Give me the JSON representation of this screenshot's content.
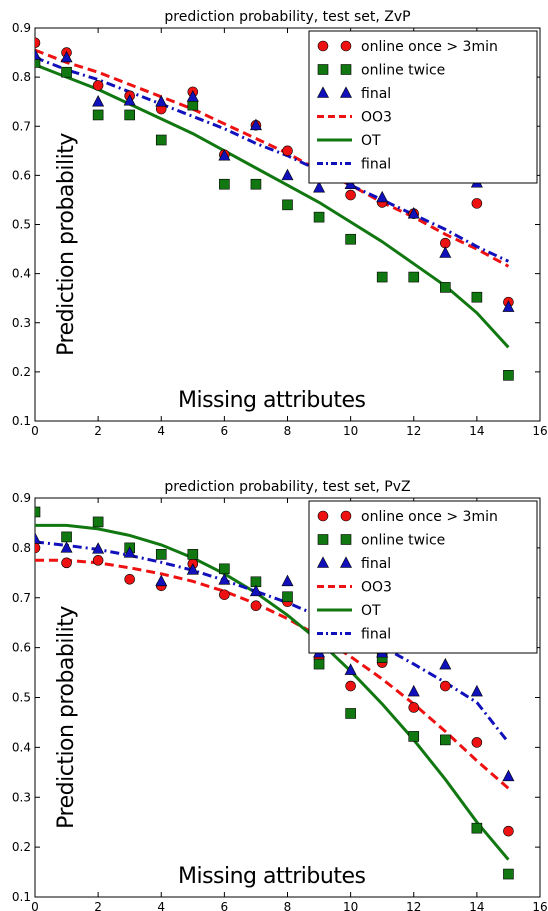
{
  "chart_data": [
    {
      "type": "scatter",
      "title": "prediction probability, test set, ZvP",
      "xlabel": "Missing attributes",
      "ylabel": "Prediction probability",
      "xlim": [
        0,
        16
      ],
      "ylim": [
        0.1,
        0.9
      ],
      "xticks": [
        "0",
        "2",
        "4",
        "6",
        "8",
        "10",
        "12",
        "14",
        "16"
      ],
      "yticks": [
        "0.1",
        "0.2",
        "0.3",
        "0.4",
        "0.5",
        "0.6",
        "0.7",
        "0.8",
        "0.9"
      ],
      "legend_position": "top-right",
      "grid": false,
      "points": [
        {
          "name": "online once > 3min",
          "marker": "circle",
          "color": "#ee1111",
          "x": [
            0,
            1,
            2,
            3,
            4,
            5,
            6,
            7,
            8,
            9,
            10,
            11,
            12,
            13,
            14,
            15
          ],
          "y": [
            0.87,
            0.85,
            0.783,
            0.762,
            0.735,
            0.77,
            0.642,
            0.702,
            0.65,
            0.622,
            0.56,
            0.545,
            0.522,
            0.462,
            0.543,
            0.342
          ]
        },
        {
          "name": "online twice",
          "marker": "square",
          "color": "#117711",
          "x": [
            0,
            1,
            2,
            3,
            4,
            5,
            6,
            7,
            8,
            9,
            10,
            11,
            12,
            13,
            14,
            15
          ],
          "y": [
            0.83,
            0.81,
            0.723,
            0.723,
            0.672,
            0.743,
            0.582,
            0.582,
            0.54,
            0.515,
            0.47,
            0.393,
            0.393,
            0.372,
            0.352,
            0.193
          ]
        },
        {
          "name": "final",
          "marker": "triangle",
          "color": "#1111bb",
          "x": [
            0,
            1,
            2,
            3,
            4,
            5,
            6,
            7,
            8,
            9,
            10,
            11,
            12,
            13,
            14,
            15
          ],
          "y": [
            0.845,
            0.84,
            0.75,
            0.752,
            0.75,
            0.76,
            0.64,
            0.702,
            0.6,
            0.575,
            0.582,
            0.555,
            0.522,
            0.442,
            0.585,
            0.332
          ]
        }
      ],
      "lines": [
        {
          "name": "OO3",
          "style": "dashed",
          "color": "#ee1111",
          "x": [
            0,
            1,
            2,
            3,
            4,
            5,
            6,
            7,
            8,
            9,
            10,
            11,
            12,
            13,
            14,
            15
          ],
          "y": [
            0.855,
            0.83,
            0.81,
            0.785,
            0.76,
            0.735,
            0.705,
            0.675,
            0.645,
            0.61,
            0.58,
            0.545,
            0.515,
            0.48,
            0.45,
            0.415
          ]
        },
        {
          "name": "OT",
          "style": "solid",
          "color": "#117711",
          "x": [
            0,
            1,
            2,
            3,
            4,
            5,
            6,
            7,
            8,
            9,
            10,
            11,
            12,
            13,
            14,
            15
          ],
          "y": [
            0.825,
            0.8,
            0.775,
            0.745,
            0.715,
            0.685,
            0.65,
            0.615,
            0.58,
            0.545,
            0.505,
            0.465,
            0.42,
            0.375,
            0.32,
            0.25
          ]
        },
        {
          "name": "final",
          "style": "dashdot",
          "color": "#1111bb",
          "x": [
            0,
            1,
            2,
            3,
            4,
            5,
            6,
            7,
            8,
            9,
            10,
            11,
            12,
            13,
            14,
            15
          ],
          "y": [
            0.84,
            0.815,
            0.795,
            0.77,
            0.745,
            0.72,
            0.695,
            0.665,
            0.64,
            0.61,
            0.58,
            0.55,
            0.52,
            0.49,
            0.455,
            0.425
          ]
        }
      ]
    },
    {
      "type": "scatter",
      "title": "prediction probability, test set, PvZ",
      "xlabel": "Missing attributes",
      "ylabel": "Prediction probability",
      "xlim": [
        0,
        16
      ],
      "ylim": [
        0.1,
        0.9
      ],
      "xticks": [
        "0",
        "2",
        "4",
        "6",
        "8",
        "10",
        "12",
        "14",
        "16"
      ],
      "yticks": [
        "0.1",
        "0.2",
        "0.3",
        "0.4",
        "0.5",
        "0.6",
        "0.7",
        "0.8",
        "0.9"
      ],
      "legend_position": "top-right",
      "grid": false,
      "points": [
        {
          "name": "online once > 3min",
          "marker": "circle",
          "color": "#ee1111",
          "x": [
            0,
            1,
            2,
            3,
            4,
            5,
            6,
            7,
            8,
            9,
            10,
            11,
            12,
            13,
            14,
            15
          ],
          "y": [
            0.8,
            0.77,
            0.775,
            0.737,
            0.724,
            0.768,
            0.706,
            0.684,
            0.692,
            0.578,
            0.523,
            0.57,
            0.48,
            0.523,
            0.41,
            0.232
          ]
        },
        {
          "name": "online twice",
          "marker": "square",
          "color": "#117711",
          "x": [
            0,
            1,
            2,
            3,
            4,
            5,
            6,
            7,
            8,
            9,
            10,
            11,
            12,
            13,
            14,
            15
          ],
          "y": [
            0.872,
            0.822,
            0.852,
            0.8,
            0.787,
            0.787,
            0.758,
            0.732,
            0.702,
            0.567,
            0.468,
            0.58,
            0.422,
            0.415,
            0.238,
            0.146
          ]
        },
        {
          "name": "final",
          "marker": "triangle",
          "color": "#1111bb",
          "x": [
            0,
            1,
            2,
            3,
            4,
            5,
            6,
            7,
            8,
            9,
            10,
            11,
            12,
            13,
            14,
            15
          ],
          "y": [
            0.818,
            0.8,
            0.798,
            0.79,
            0.733,
            0.756,
            0.736,
            0.713,
            0.733,
            0.59,
            0.555,
            0.59,
            0.512,
            0.566,
            0.512,
            0.342
          ]
        }
      ],
      "lines": [
        {
          "name": "OO3",
          "style": "dashed",
          "color": "#ee1111",
          "x": [
            0,
            1,
            2,
            3,
            4,
            5,
            6,
            7,
            8,
            9,
            10,
            11,
            12,
            13,
            14,
            15
          ],
          "y": [
            0.775,
            0.775,
            0.77,
            0.76,
            0.748,
            0.733,
            0.713,
            0.688,
            0.658,
            0.623,
            0.582,
            0.537,
            0.487,
            0.432,
            0.373,
            0.318
          ]
        },
        {
          "name": "OT",
          "style": "solid",
          "color": "#117711",
          "x": [
            0,
            1,
            2,
            3,
            4,
            5,
            6,
            7,
            8,
            9,
            10,
            11,
            12,
            13,
            14,
            15
          ],
          "y": [
            0.845,
            0.845,
            0.838,
            0.825,
            0.806,
            0.78,
            0.748,
            0.71,
            0.665,
            0.613,
            0.553,
            0.487,
            0.415,
            0.336,
            0.25,
            0.175
          ]
        },
        {
          "name": "final",
          "style": "dashdot",
          "color": "#1111bb",
          "x": [
            0,
            1,
            2,
            3,
            4,
            5,
            6,
            7,
            8,
            9,
            10,
            11,
            12,
            13,
            14,
            15
          ],
          "y": [
            0.812,
            0.805,
            0.797,
            0.785,
            0.771,
            0.755,
            0.735,
            0.713,
            0.69,
            0.663,
            0.634,
            0.602,
            0.567,
            0.53,
            0.49,
            0.41
          ]
        }
      ]
    }
  ]
}
